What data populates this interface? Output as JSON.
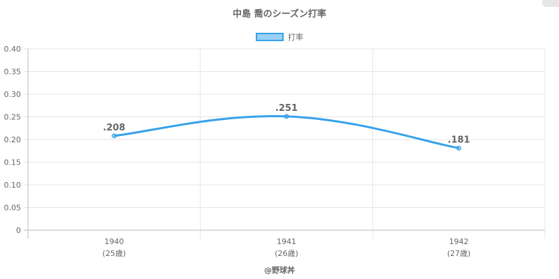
{
  "title": "中島 喬のシーズン打率",
  "legend": {
    "label": "打率"
  },
  "watermark": "@野球丼",
  "colors": {
    "line": "#36a2eb",
    "fill": "rgba(54,162,235,0.5)",
    "grid": "#e5e5e5",
    "text": "#666666"
  },
  "chart_data": {
    "type": "line",
    "title": "中島 喬のシーズン打率",
    "categories": [
      "1940",
      "1941",
      "1942"
    ],
    "category_sublabels": [
      "(25歳)",
      "(26歳)",
      "(27歳)"
    ],
    "series": [
      {
        "name": "打率",
        "values": [
          0.208,
          0.251,
          0.181
        ],
        "labels": [
          ".208",
          ".251",
          ".181"
        ]
      }
    ],
    "ylim": [
      0,
      0.4
    ],
    "yticks": [
      0,
      0.05,
      0.1,
      0.15,
      0.2,
      0.25,
      0.3,
      0.35,
      0.4
    ],
    "ytick_labels": [
      "0",
      "0.05",
      "0.10",
      "0.15",
      "0.20",
      "0.25",
      "0.30",
      "0.35",
      "0.40"
    ],
    "grid": true,
    "legend_position": "top-center"
  }
}
